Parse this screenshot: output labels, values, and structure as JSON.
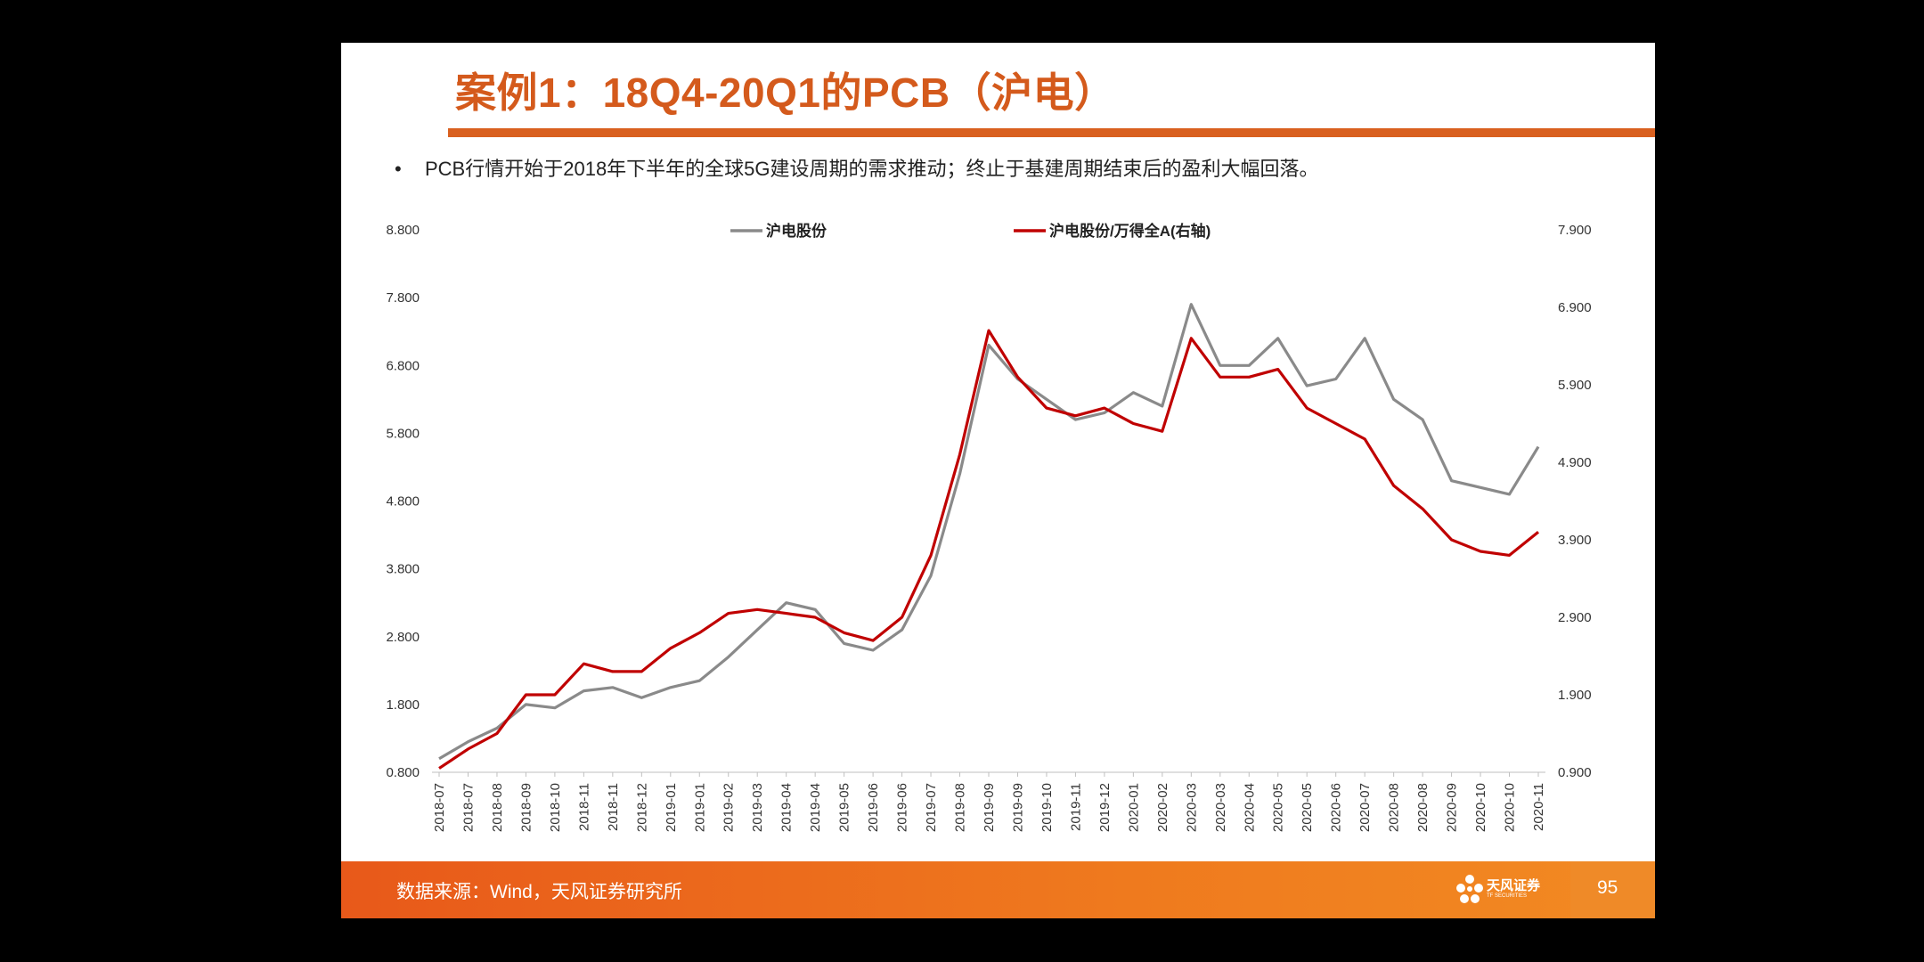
{
  "slide": {
    "title": "案例1：18Q4-20Q1的PCB（沪电）",
    "bullet_mark": "•",
    "bullet": "PCB行情开始于2018年下半年的全球5G建设周期的需求推动；终止于基建周期结束后的盈利大幅回落。",
    "source": "数据来源：Wind，天风证券研究所",
    "logo_text": "天风证券",
    "logo_sub": "TF SECURITIES",
    "page_number": "95"
  },
  "colors": {
    "title": "#d45a1c",
    "accent": "#d9601f",
    "series_gray": "#8a8a8a",
    "series_red": "#c00000"
  },
  "chart_data": {
    "type": "line",
    "ylim": [
      0.8,
      8.8
    ],
    "y2lim": [
      0.9,
      7.9
    ],
    "yticks": [
      "0.800",
      "1.800",
      "2.800",
      "3.800",
      "4.800",
      "5.800",
      "6.800",
      "7.800",
      "8.800"
    ],
    "y2ticks": [
      "0.900",
      "1.900",
      "2.900",
      "3.900",
      "4.900",
      "5.900",
      "6.900",
      "7.900"
    ],
    "categories": [
      "2018-07",
      "2018-07",
      "2018-08",
      "2018-09",
      "2018-10",
      "2018-11",
      "2018-11",
      "2018-12",
      "2019-01",
      "2019-01",
      "2019-02",
      "2019-03",
      "2019-04",
      "2019-04",
      "2019-05",
      "2019-06",
      "2019-06",
      "2019-07",
      "2019-08",
      "2019-09",
      "2019-09",
      "2019-10",
      "2019-11",
      "2019-12",
      "2020-01",
      "2020-02",
      "2020-03",
      "2020-03",
      "2020-04",
      "2020-05",
      "2020-05",
      "2020-06",
      "2020-07",
      "2020-08",
      "2020-08",
      "2020-09",
      "2020-10",
      "2020-10",
      "2020-11"
    ],
    "series": [
      {
        "name": "沪电股份",
        "axis": "left",
        "values": [
          1.0,
          1.25,
          1.45,
          1.8,
          1.75,
          2.0,
          2.05,
          1.9,
          2.05,
          2.15,
          2.5,
          2.9,
          3.3,
          3.2,
          2.7,
          2.6,
          2.9,
          3.7,
          5.2,
          7.1,
          6.6,
          6.3,
          6.0,
          6.1,
          6.4,
          6.2,
          7.7,
          6.8,
          6.8,
          7.2,
          6.5,
          6.6,
          7.2,
          6.3,
          6.0,
          5.1,
          5.0,
          4.9,
          5.6
        ]
      },
      {
        "name": "沪电股份/万得全A(右轴)",
        "axis": "right",
        "values": [
          0.95,
          1.2,
          1.4,
          1.9,
          1.9,
          2.3,
          2.2,
          2.2,
          2.5,
          2.7,
          2.95,
          3.0,
          2.95,
          2.9,
          2.7,
          2.6,
          2.9,
          3.7,
          5.0,
          6.6,
          6.0,
          5.6,
          5.5,
          5.6,
          5.4,
          5.3,
          6.5,
          6.0,
          6.0,
          6.1,
          5.6,
          5.4,
          5.2,
          4.6,
          4.3,
          3.9,
          3.75,
          3.7,
          4.0
        ]
      }
    ]
  }
}
